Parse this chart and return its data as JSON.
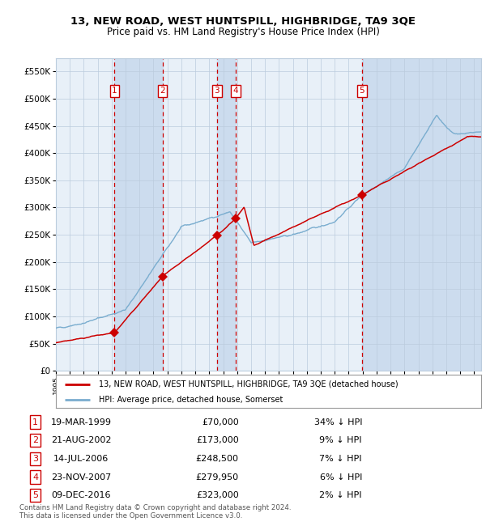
{
  "title": "13, NEW ROAD, WEST HUNTSPILL, HIGHBRIDGE, TA9 3QE",
  "subtitle": "Price paid vs. HM Land Registry's House Price Index (HPI)",
  "legend_line1": "13, NEW ROAD, WEST HUNTSPILL, HIGHBRIDGE, TA9 3QE (detached house)",
  "legend_line2": "HPI: Average price, detached house, Somerset",
  "footer1": "Contains HM Land Registry data © Crown copyright and database right 2024.",
  "footer2": "This data is licensed under the Open Government Licence v3.0.",
  "ylim": [
    0,
    575000
  ],
  "yticks": [
    0,
    50000,
    100000,
    150000,
    200000,
    250000,
    300000,
    350000,
    400000,
    450000,
    500000,
    550000
  ],
  "xlim_start": 1995.0,
  "xlim_end": 2025.5,
  "sales": [
    {
      "num": 1,
      "date_str": "19-MAR-1999",
      "date_x": 1999.21,
      "price": 70000,
      "pct": "34%",
      "dir": "↓"
    },
    {
      "num": 2,
      "date_str": "21-AUG-2002",
      "date_x": 2002.64,
      "price": 173000,
      "pct": "9%",
      "dir": "↓"
    },
    {
      "num": 3,
      "date_str": "14-JUL-2006",
      "date_x": 2006.54,
      "price": 248500,
      "pct": "7%",
      "dir": "↓"
    },
    {
      "num": 4,
      "date_str": "23-NOV-2007",
      "date_x": 2007.9,
      "price": 279950,
      "pct": "6%",
      "dir": "↓"
    },
    {
      "num": 5,
      "date_str": "09-DEC-2016",
      "date_x": 2016.94,
      "price": 323000,
      "pct": "2%",
      "dir": "↓"
    }
  ],
  "red_line_color": "#cc0000",
  "blue_line_color": "#7aadcf",
  "chart_bg_color": "#e8f0f8",
  "bg_band_color": "#ccdcee",
  "vline_color": "#cc0000",
  "grid_color": "#bbccdd",
  "box_color": "#cc0000",
  "title_fontsize": 9.5,
  "subtitle_fontsize": 8.5
}
